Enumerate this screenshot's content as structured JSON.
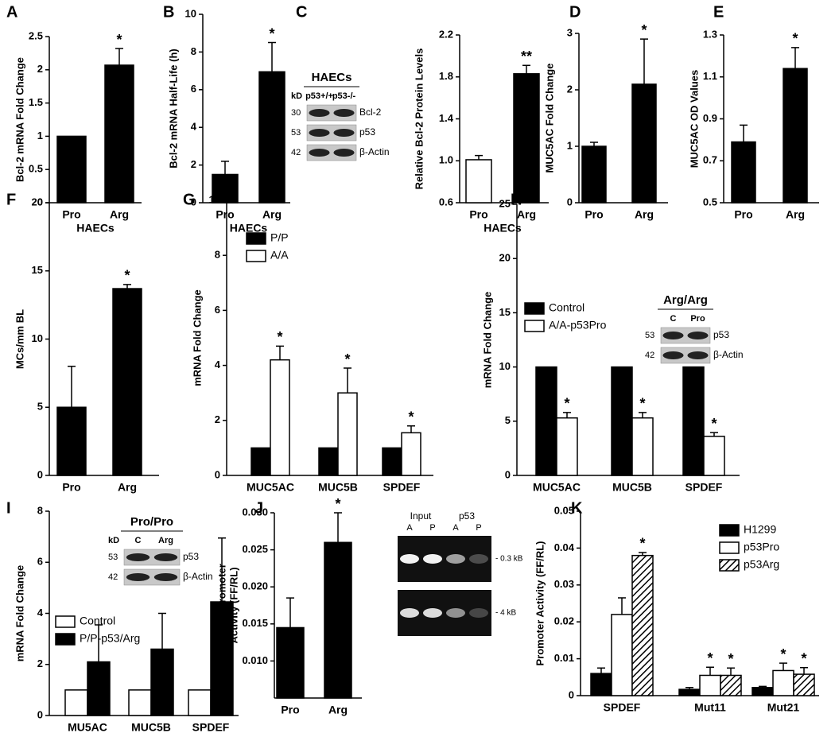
{
  "chart_data": [
    {
      "type": "bar",
      "panel": "A",
      "ylabel": [
        "Bcl-2 mRNA Fold Change"
      ],
      "xlabel": "HAECs",
      "categories": [
        "Pro",
        "Arg"
      ],
      "values": [
        1,
        2.07
      ],
      "errors": [
        0,
        0.25
      ],
      "colors": [
        "#000000",
        "#000000"
      ],
      "significance": [
        null,
        "*"
      ],
      "ylim": [
        0,
        2.5
      ],
      "yticks": [
        0,
        0.5,
        1,
        1.5,
        2,
        2.5
      ]
    },
    {
      "type": "bar",
      "panel": "B",
      "ylabel": [
        "Bcl-2 mRNA Half-Life (h)"
      ],
      "xlabel": "HAECs",
      "categories": [
        "Pro",
        "Arg"
      ],
      "values": [
        1.5,
        6.95
      ],
      "errors": [
        0.7,
        1.55
      ],
      "colors": [
        "#000000",
        "#000000"
      ],
      "significance": [
        null,
        "*"
      ],
      "ylim": [
        0,
        10
      ],
      "yticks": [
        0,
        2,
        4,
        6,
        8,
        10
      ]
    },
    {
      "type": "bar",
      "panel": "C",
      "ylabel": [
        "Relative Bcl-2 Protein Levels"
      ],
      "xlabel": "HAECs",
      "categories": [
        "Pro",
        "Arg"
      ],
      "values": [
        1.01,
        1.83
      ],
      "errors": [
        0.04,
        0.08
      ],
      "colors": [
        "#ffffff",
        "#000000"
      ],
      "significance": [
        null,
        "**"
      ],
      "ylim": [
        0.6,
        2.2
      ],
      "yticks": [
        0.6,
        {
          "value": 1,
          "label": "1.0"
        },
        1.4,
        1.8,
        2.2
      ],
      "blot": {
        "title": "HAECs",
        "kd_label": "kD",
        "lanes": [
          "p53+/+",
          "p53-/-"
        ],
        "bands": [
          {
            "kd": "30",
            "label": "Bcl-2"
          },
          {
            "kd": "53",
            "label": "p53"
          },
          {
            "kd": "42",
            "label": "β-Actin"
          }
        ]
      }
    },
    {
      "type": "bar",
      "panel": "D",
      "ylabel": [
        "MUC5AC Fold Change"
      ],
      "categories": [
        "Pro",
        "Arg"
      ],
      "values": [
        1,
        2.1
      ],
      "errors": [
        0.07,
        0.8
      ],
      "colors": [
        "#000000",
        "#000000"
      ],
      "significance": [
        null,
        "*"
      ],
      "ylim": [
        0,
        3
      ],
      "yticks": [
        0,
        1,
        2,
        3
      ]
    },
    {
      "type": "bar",
      "panel": "E",
      "ylabel": [
        "MUC5AC OD Values"
      ],
      "categories": [
        "Pro",
        "Arg"
      ],
      "values": [
        0.79,
        1.14
      ],
      "errors": [
        0.08,
        0.1
      ],
      "colors": [
        "#000000",
        "#000000"
      ],
      "significance": [
        null,
        "*"
      ],
      "ylim": [
        0.5,
        1.3
      ],
      "yticks": [
        0.5,
        0.7,
        0.9,
        1.1,
        1.3
      ]
    },
    {
      "type": "bar",
      "panel": "F",
      "ylabel": [
        "MCs/mm BL"
      ],
      "categories": [
        "Pro",
        "Arg"
      ],
      "values": [
        5,
        13.7
      ],
      "errors": [
        3,
        0.3
      ],
      "colors": [
        "#000000",
        "#000000"
      ],
      "significance": [
        null,
        "*"
      ],
      "ylim": [
        0,
        20
      ],
      "yticks": [
        0,
        5,
        10,
        15,
        20
      ]
    },
    {
      "type": "grouped_bar",
      "panel": "G",
      "ylabel": [
        "mRNA Fold Change"
      ],
      "categories": [
        "MUC5AC",
        "MUC5B",
        "SPDEF"
      ],
      "series": [
        {
          "name": "P/P",
          "color": "#000000",
          "values": [
            1,
            1,
            1
          ],
          "errors": [
            0,
            0,
            0
          ]
        },
        {
          "name": "A/A",
          "color": "#ffffff",
          "values": [
            4.2,
            3.0,
            1.55
          ],
          "errors": [
            0.5,
            0.9,
            0.25
          ],
          "significance": [
            "*",
            "*",
            "*"
          ]
        }
      ],
      "ylim": [
        0,
        10
      ],
      "yticks": [
        0,
        2,
        4,
        6,
        8,
        10
      ]
    },
    {
      "type": "grouped_bar",
      "panel": "H",
      "ylabel": [
        "mRNA Fold Change"
      ],
      "categories": [
        "MUC5AC",
        "MUC5B",
        "SPDEF"
      ],
      "series": [
        {
          "name": "Control",
          "color": "#000000",
          "values": [
            10,
            10,
            10
          ],
          "errors": [
            0,
            0,
            0
          ]
        },
        {
          "name": "A/A-p53Pro",
          "color": "#ffffff",
          "values": [
            5.3,
            5.3,
            3.6
          ],
          "errors": [
            0.5,
            0.5,
            0.35
          ],
          "significance": [
            "*",
            "*",
            "*"
          ]
        }
      ],
      "ylim": [
        0,
        25
      ],
      "yticks": [
        0,
        5,
        10,
        15,
        20,
        25
      ],
      "blot": {
        "title": "Arg/Arg",
        "lanes": [
          "C",
          "Pro"
        ],
        "bands": [
          {
            "kd": "53",
            "label": "p53"
          },
          {
            "kd": "42",
            "label": "β-Actin"
          }
        ]
      }
    },
    {
      "type": "grouped_bar",
      "panel": "I",
      "ylabel": [
        "mRNA Fold Change"
      ],
      "categories": [
        "MU5AC",
        "MUC5B",
        "SPDEF"
      ],
      "series": [
        {
          "name": "Control",
          "color": "#ffffff",
          "values": [
            1,
            1,
            1
          ],
          "errors": [
            0,
            0,
            0
          ]
        },
        {
          "name": "P/P-p53/Arg",
          "color": "#000000",
          "values": [
            2.1,
            2.6,
            4.45
          ],
          "errors": [
            1.45,
            1.4,
            2.5
          ]
        }
      ],
      "ylim": [
        0,
        8
      ],
      "yticks": [
        0,
        2,
        4,
        6,
        8
      ],
      "blot": {
        "title": "Pro/Pro",
        "kd_label": "kD",
        "lanes": [
          "C",
          "Arg"
        ],
        "bands": [
          {
            "kd": "53",
            "label": "p53"
          },
          {
            "kd": "42",
            "label": "β-Actin"
          }
        ]
      }
    },
    {
      "type": "bar",
      "panel": "J",
      "ylabel": [
        "SPDEF Promoter",
        "Activity (FF/RL)"
      ],
      "categories": [
        "Pro",
        "Arg"
      ],
      "values": [
        0.0145,
        0.026
      ],
      "errors": [
        0.004,
        0.004
      ],
      "colors": [
        "#000000",
        "#000000"
      ],
      "significance": [
        null,
        "*"
      ],
      "ylim": [
        0.005,
        0.03
      ],
      "yticks": [
        {
          "value": 0.01,
          "label": "0.010"
        },
        0.015,
        {
          "value": 0.02,
          "label": "0.020"
        },
        0.025,
        {
          "value": 0.03,
          "label": "0.030"
        }
      ],
      "gel": {
        "groups": [
          "Input",
          "p53"
        ],
        "lanes": [
          "A",
          "P",
          "A",
          "P"
        ],
        "sizes": [
          "- 0.3 kB",
          "- 4 kB"
        ]
      }
    },
    {
      "type": "grouped_bar",
      "panel": "K",
      "ylabel": [
        "Promoter Activity (FF/RL)"
      ],
      "categories": [
        "SPDEF",
        "Mut11",
        "Mut21"
      ],
      "series": [
        {
          "name": "H1299",
          "color": "#000000",
          "values": [
            0.006,
            0.0017,
            0.0022
          ],
          "errors": [
            0.0015,
            0.0005,
            0.0003
          ]
        },
        {
          "name": "p53Pro",
          "color": "#ffffff",
          "values": [
            0.022,
            0.0055,
            0.0068
          ],
          "errors": [
            0.0045,
            0.0022,
            0.002
          ],
          "significance": [
            null,
            "*",
            "*"
          ]
        },
        {
          "name": "p53Arg",
          "color": "#000000",
          "pattern": "hatch",
          "values": [
            0.038,
            0.0055,
            0.0058
          ],
          "errors": [
            0.0008,
            0.002,
            0.0018
          ],
          "significance": [
            "*",
            "*",
            "*"
          ]
        }
      ],
      "ylim": [
        0,
        0.05
      ],
      "yticks": [
        0,
        0.01,
        0.02,
        0.03,
        0.04,
        0.05
      ]
    }
  ]
}
